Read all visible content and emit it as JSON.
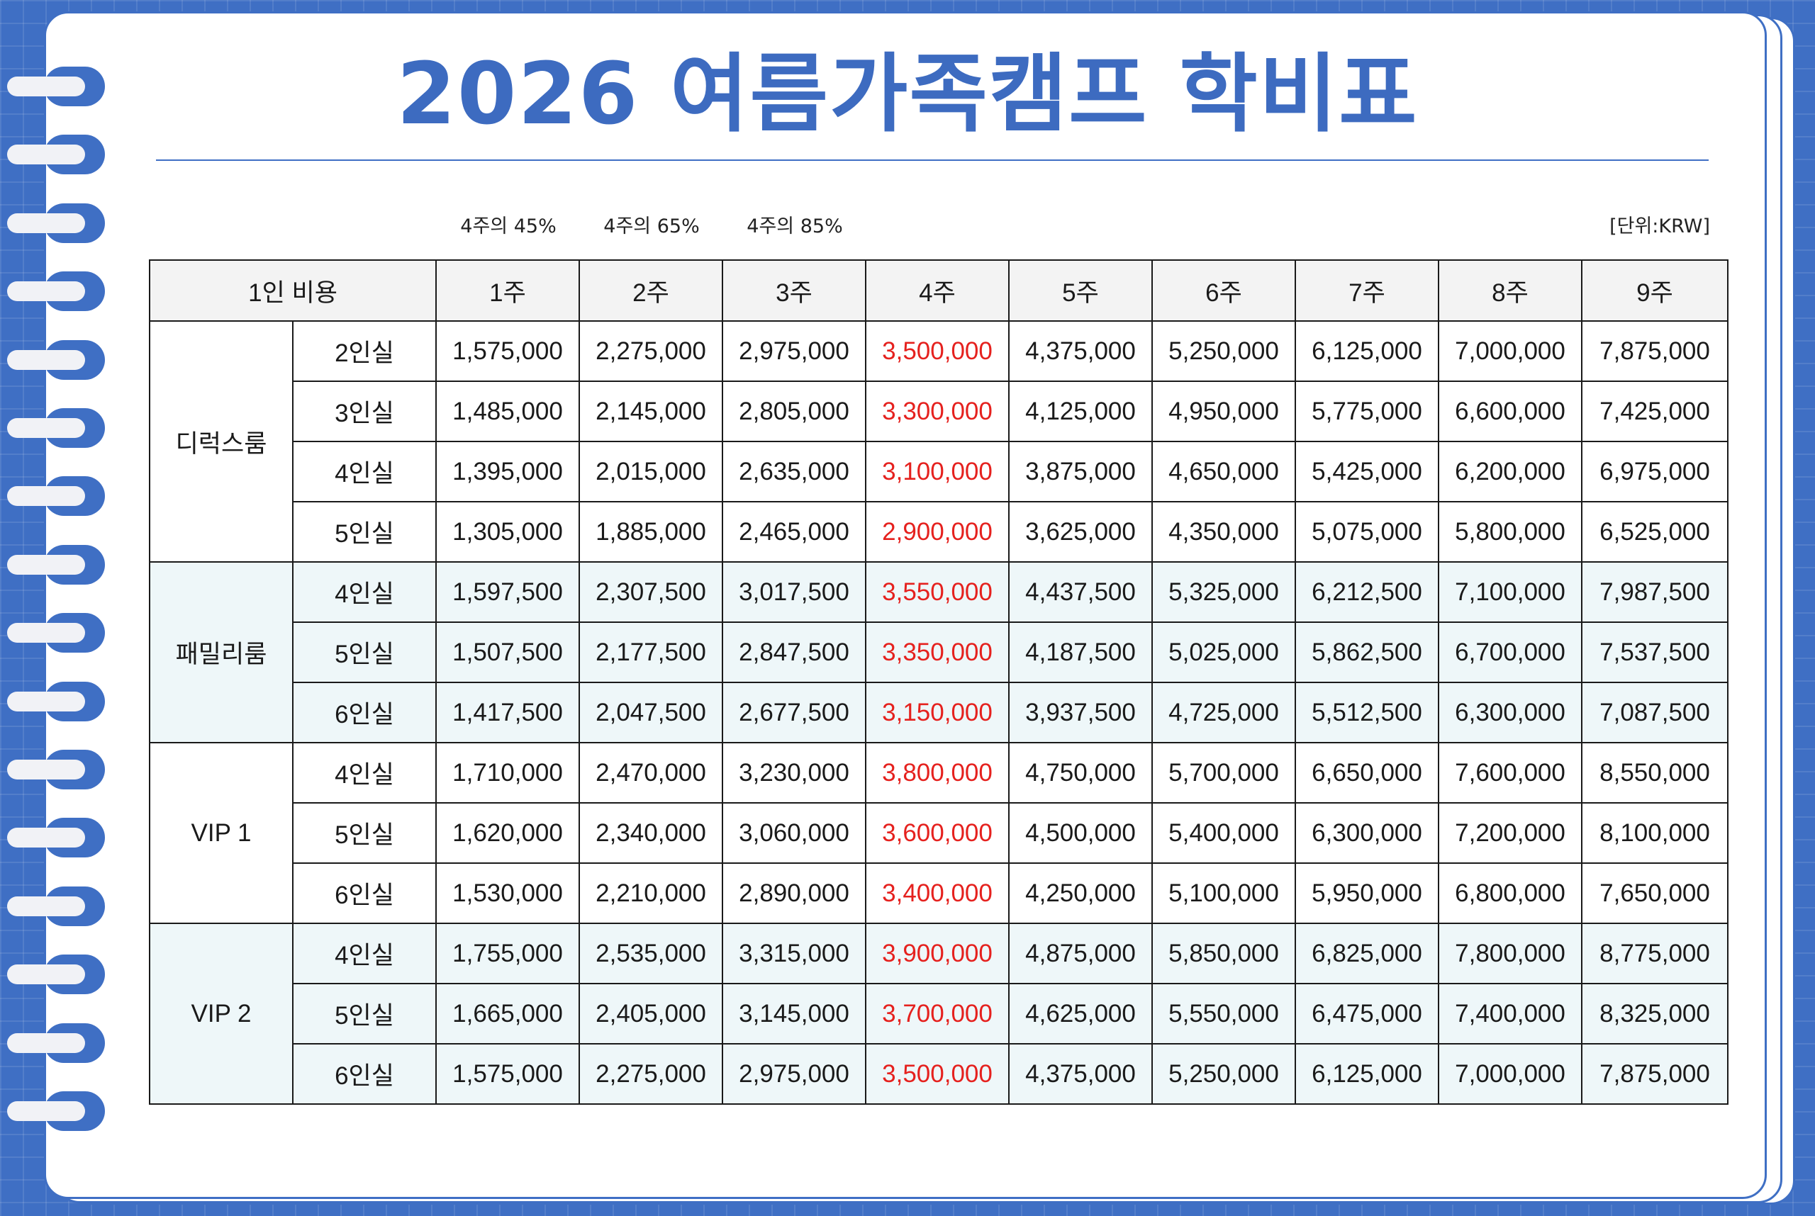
{
  "title": "2026 여름가족캠프 학비표",
  "notes": [
    "4주의 45%",
    "4주의 65%",
    "4주의 85%"
  ],
  "unit": "[단위:KRW]",
  "table": {
    "corner": "1인 비용",
    "weeks": [
      "1주",
      "2주",
      "3주",
      "4주",
      "5주",
      "6주",
      "7주",
      "8주",
      "9주"
    ],
    "groups": [
      {
        "name": "디럭스룸",
        "rows": [
          {
            "room": "2인실",
            "values": [
              "1,575,000",
              "2,275,000",
              "2,975,000",
              "3,500,000",
              "4,375,000",
              "5,250,000",
              "6,125,000",
              "7,000,000",
              "7,875,000"
            ]
          },
          {
            "room": "3인실",
            "values": [
              "1,485,000",
              "2,145,000",
              "2,805,000",
              "3,300,000",
              "4,125,000",
              "4,950,000",
              "5,775,000",
              "6,600,000",
              "7,425,000"
            ]
          },
          {
            "room": "4인실",
            "values": [
              "1,395,000",
              "2,015,000",
              "2,635,000",
              "3,100,000",
              "3,875,000",
              "4,650,000",
              "5,425,000",
              "6,200,000",
              "6,975,000"
            ]
          },
          {
            "room": "5인실",
            "values": [
              "1,305,000",
              "1,885,000",
              "2,465,000",
              "2,900,000",
              "3,625,000",
              "4,350,000",
              "5,075,000",
              "5,800,000",
              "6,525,000"
            ]
          }
        ]
      },
      {
        "name": "패밀리룸",
        "rows": [
          {
            "room": "4인실",
            "values": [
              "1,597,500",
              "2,307,500",
              "3,017,500",
              "3,550,000",
              "4,437,500",
              "5,325,000",
              "6,212,500",
              "7,100,000",
              "7,987,500"
            ]
          },
          {
            "room": "5인실",
            "values": [
              "1,507,500",
              "2,177,500",
              "2,847,500",
              "3,350,000",
              "4,187,500",
              "5,025,000",
              "5,862,500",
              "6,700,000",
              "7,537,500"
            ]
          },
          {
            "room": "6인실",
            "values": [
              "1,417,500",
              "2,047,500",
              "2,677,500",
              "3,150,000",
              "3,937,500",
              "4,725,000",
              "5,512,500",
              "6,300,000",
              "7,087,500"
            ]
          }
        ]
      },
      {
        "name": "VIP 1",
        "rows": [
          {
            "room": "4인실",
            "values": [
              "1,710,000",
              "2,470,000",
              "3,230,000",
              "3,800,000",
              "4,750,000",
              "5,700,000",
              "6,650,000",
              "7,600,000",
              "8,550,000"
            ]
          },
          {
            "room": "5인실",
            "values": [
              "1,620,000",
              "2,340,000",
              "3,060,000",
              "3,600,000",
              "4,500,000",
              "5,400,000",
              "6,300,000",
              "7,200,000",
              "8,100,000"
            ]
          },
          {
            "room": "6인실",
            "values": [
              "1,530,000",
              "2,210,000",
              "2,890,000",
              "3,400,000",
              "4,250,000",
              "5,100,000",
              "5,950,000",
              "6,800,000",
              "7,650,000"
            ]
          }
        ]
      },
      {
        "name": "VIP 2",
        "rows": [
          {
            "room": "4인실",
            "values": [
              "1,755,000",
              "2,535,000",
              "3,315,000",
              "3,900,000",
              "4,875,000",
              "5,850,000",
              "6,825,000",
              "7,800,000",
              "8,775,000"
            ]
          },
          {
            "room": "5인실",
            "values": [
              "1,665,000",
              "2,405,000",
              "3,145,000",
              "3,700,000",
              "4,625,000",
              "5,550,000",
              "6,475,000",
              "7,400,000",
              "8,325,000"
            ]
          },
          {
            "room": "6인실",
            "values": [
              "1,575,000",
              "2,275,000",
              "2,975,000",
              "3,500,000",
              "4,375,000",
              "5,250,000",
              "6,125,000",
              "7,000,000",
              "7,875,000"
            ]
          }
        ]
      }
    ]
  },
  "colors": {
    "accent": "#3d6bc0",
    "highlight_column": "#e5211e",
    "shaded_rows": "#eef7f9",
    "header_bg": "#f3f3f3"
  }
}
